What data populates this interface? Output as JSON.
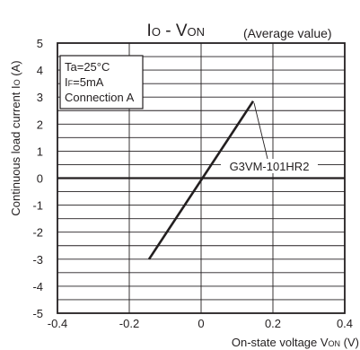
{
  "chart_data": {
    "type": "line",
    "title": {
      "main": "I",
      "main_sub": "O",
      "mid": " - V",
      "mid_sub": "ON"
    },
    "subtitle": "(Average value)",
    "xlabel": {
      "text": "On-state voltage V",
      "sub": "ON",
      "unit": " (V)"
    },
    "ylabel": {
      "text": "Continuous load current I",
      "sub": "O",
      "unit": " (A)"
    },
    "xlim": [
      -0.4,
      0.4
    ],
    "ylim": [
      -5,
      5
    ],
    "x_ticks": [
      "-0.4",
      "-0.2",
      "0",
      "0.2",
      "0.4"
    ],
    "x_tick_values": [
      -0.4,
      -0.2,
      0,
      0.2,
      0.4
    ],
    "y_ticks": [
      "5",
      "4",
      "3",
      "2",
      "1",
      "0",
      "-1",
      "-2",
      "-3",
      "-4",
      "-5"
    ],
    "y_tick_values": [
      5,
      4,
      3,
      2,
      1,
      0,
      -1,
      -2,
      -3,
      -4,
      -5
    ],
    "grid": true,
    "conditions": {
      "ta": "Ta=25°C",
      "if_main": "I",
      "if_sub": "F",
      "if_value": "=5mA",
      "connection": "Connection A"
    },
    "series": [
      {
        "name": "G3VM-101HR2",
        "x": [
          -0.145,
          0.145
        ],
        "y": [
          -3.0,
          2.85
        ]
      }
    ],
    "colors": {
      "line": "#231f20",
      "grid": "#231f20"
    }
  }
}
